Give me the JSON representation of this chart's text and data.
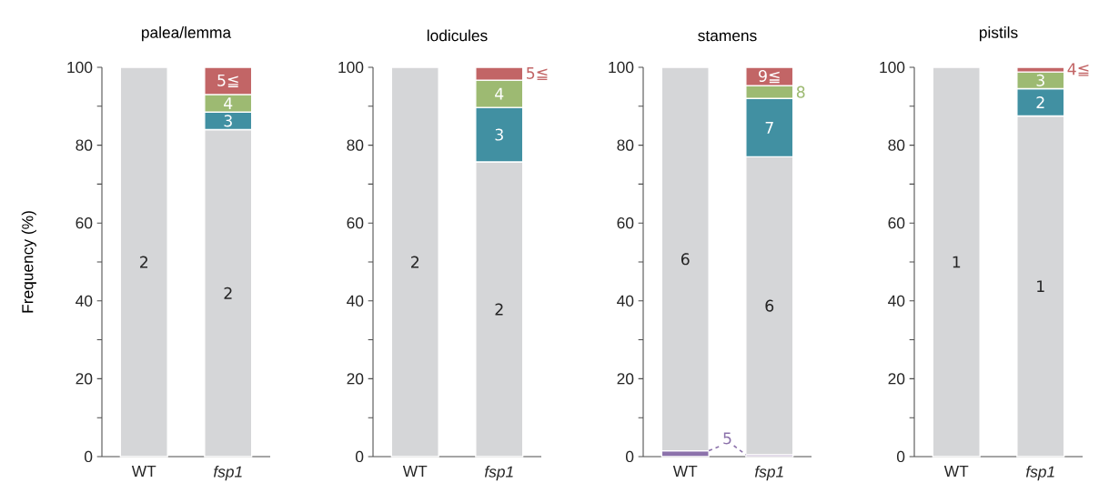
{
  "chart_data": [
    {
      "type": "bar",
      "stacked": true,
      "title": "palea/lemma",
      "ylabel": "Frequency (%)",
      "categories": [
        "WT",
        "*fsp1*"
      ],
      "ylim": [
        0,
        100
      ],
      "yticks": [
        0,
        {
          "value": 10,
          "label": null
        },
        20,
        {
          "value": 30,
          "label": null
        },
        40,
        {
          "value": 50,
          "label": null
        },
        60,
        {
          "value": 70,
          "label": null
        },
        80,
        {
          "value": 90,
          "label": null
        },
        100
      ],
      "series": [
        {
          "name": "2",
          "color": "#d5d6d8",
          "values": [
            100,
            84
          ]
        },
        {
          "name": "3",
          "color": "#4190a2",
          "values": [
            null,
            4.5
          ]
        },
        {
          "name": "4",
          "color": "#9dba72",
          "values": [
            null,
            4.5
          ]
        },
        {
          "name": "5≦",
          "color": "#c26566",
          "values": [
            null,
            7
          ]
        }
      ]
    },
    {
      "type": "bar",
      "stacked": true,
      "title": "lodicules",
      "categories": [
        "WT",
        "*fsp1*"
      ],
      "ylim": [
        0,
        100
      ],
      "yticks": [
        0,
        {
          "value": 10,
          "label": null
        },
        20,
        {
          "value": 30,
          "label": null
        },
        40,
        {
          "value": 50,
          "label": null
        },
        60,
        {
          "value": 70,
          "label": null
        },
        80,
        {
          "value": 90,
          "label": null
        },
        100
      ],
      "series": [
        {
          "name": "2",
          "color": "#d5d6d8",
          "values": [
            100,
            75.7
          ]
        },
        {
          "name": "3",
          "color": "#4190a2",
          "values": [
            null,
            14
          ]
        },
        {
          "name": "4",
          "color": "#9dba72",
          "values": [
            null,
            7
          ]
        },
        {
          "name": "5≦",
          "color": "#c26566",
          "values": [
            null,
            3.3
          ]
        }
      ]
    },
    {
      "type": "bar",
      "stacked": true,
      "title": "stamens",
      "categories": [
        "WT",
        "*fsp1*"
      ],
      "ylim": [
        0,
        100
      ],
      "yticks": [
        0,
        {
          "value": 10,
          "label": null
        },
        20,
        {
          "value": 30,
          "label": null
        },
        40,
        {
          "value": 50,
          "label": null
        },
        60,
        {
          "value": 70,
          "label": null
        },
        80,
        {
          "value": 90,
          "label": null
        },
        100
      ],
      "series": [
        {
          "name": "5",
          "color": "#8c72ab",
          "values": [
            1.5,
            0.5
          ]
        },
        {
          "name": "6",
          "color": "#d5d6d8",
          "values": [
            98.5,
            76.5
          ]
        },
        {
          "name": "7",
          "color": "#4190a2",
          "values": [
            null,
            15
          ]
        },
        {
          "name": "8",
          "color": "#9dba72",
          "values": [
            null,
            3.3
          ]
        },
        {
          "name": "9≦",
          "color": "#c26566",
          "values": [
            null,
            4.7
          ]
        }
      ]
    },
    {
      "type": "bar",
      "stacked": true,
      "title": "pistils",
      "categories": [
        "WT",
        "*fsp1*"
      ],
      "ylim": [
        0,
        100
      ],
      "yticks": [
        0,
        {
          "value": 10,
          "label": null
        },
        20,
        {
          "value": 30,
          "label": null
        },
        40,
        {
          "value": 50,
          "label": null
        },
        60,
        {
          "value": 70,
          "label": null
        },
        80,
        {
          "value": 90,
          "label": null
        },
        100
      ],
      "series": [
        {
          "name": "1",
          "color": "#d5d6d8",
          "values": [
            100,
            87.5
          ]
        },
        {
          "name": "2",
          "color": "#4190a2",
          "values": [
            null,
            7
          ]
        },
        {
          "name": "3",
          "color": "#9dba72",
          "values": [
            null,
            4.3
          ]
        },
        {
          "name": "4≦",
          "color": "#c26566",
          "values": [
            null,
            1.2
          ]
        }
      ]
    }
  ]
}
